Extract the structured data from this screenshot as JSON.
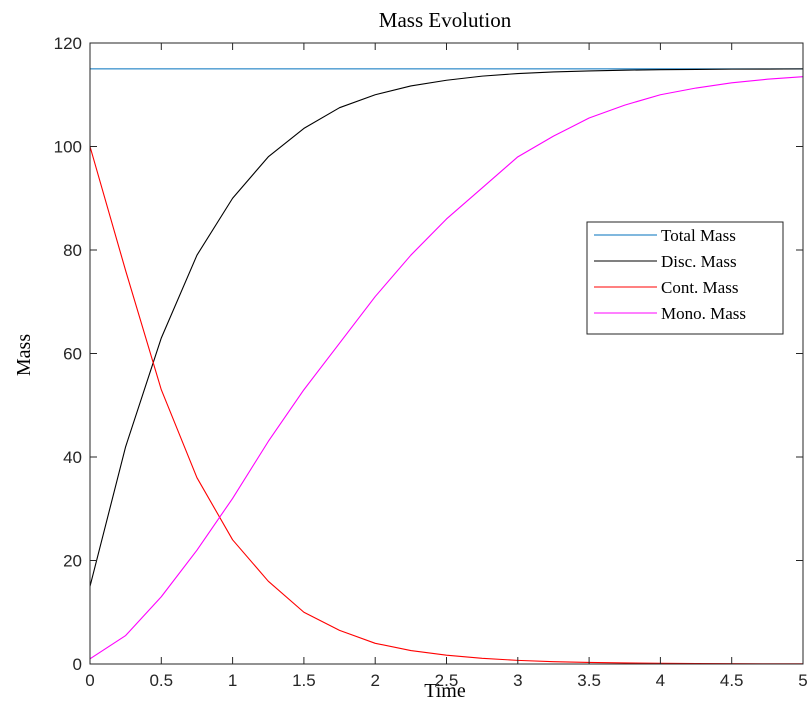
{
  "chart_data": {
    "type": "line",
    "title": "Mass Evolution",
    "xlabel": "Time",
    "ylabel": "Mass",
    "xlim": [
      0,
      5
    ],
    "ylim": [
      0,
      120
    ],
    "xticks": [
      0,
      0.5,
      1,
      1.5,
      2,
      2.5,
      3,
      3.5,
      4,
      4.5,
      5
    ],
    "xtick_labels": [
      "0",
      "0.5",
      "1",
      "1.5",
      "2",
      "2.5",
      "3",
      "3.5",
      "4",
      "4.5",
      "5"
    ],
    "yticks": [
      0,
      20,
      40,
      60,
      80,
      100,
      120
    ],
    "ytick_labels": [
      "0",
      "20",
      "40",
      "60",
      "80",
      "100",
      "120"
    ],
    "grid": false,
    "legend_position": "right",
    "x": [
      0,
      0.25,
      0.5,
      0.75,
      1,
      1.25,
      1.5,
      1.75,
      2,
      2.25,
      2.5,
      2.75,
      3,
      3.25,
      3.5,
      3.75,
      4,
      4.25,
      4.5,
      4.75,
      5
    ],
    "series": [
      {
        "name": "Total Mass",
        "color": "#0072BD",
        "values": [
          115,
          115,
          115,
          115,
          115,
          115,
          115,
          115,
          115,
          115,
          115,
          115,
          115,
          115,
          115,
          115,
          115,
          115,
          115,
          115,
          115
        ]
      },
      {
        "name": "Disc. Mass",
        "color": "#000000",
        "values": [
          15,
          42,
          63,
          79,
          90,
          98,
          103.5,
          107.5,
          110,
          111.7,
          112.8,
          113.6,
          114.1,
          114.4,
          114.6,
          114.75,
          114.85,
          114.9,
          114.95,
          114.97,
          115
        ]
      },
      {
        "name": "Cont. Mass",
        "color": "#FF0000",
        "values": [
          100,
          76,
          53,
          36,
          24,
          16,
          10,
          6.5,
          4,
          2.6,
          1.7,
          1.1,
          0.7,
          0.45,
          0.3,
          0.2,
          0.13,
          0.09,
          0.06,
          0.04,
          0.03
        ]
      },
      {
        "name": "Mono. Mass",
        "color": "#FF00FF",
        "values": [
          1,
          5.5,
          13,
          22,
          32,
          43,
          53,
          62,
          71,
          79,
          86,
          92,
          98,
          102,
          105.5,
          108,
          110,
          111.3,
          112.3,
          113,
          113.5
        ]
      }
    ]
  }
}
